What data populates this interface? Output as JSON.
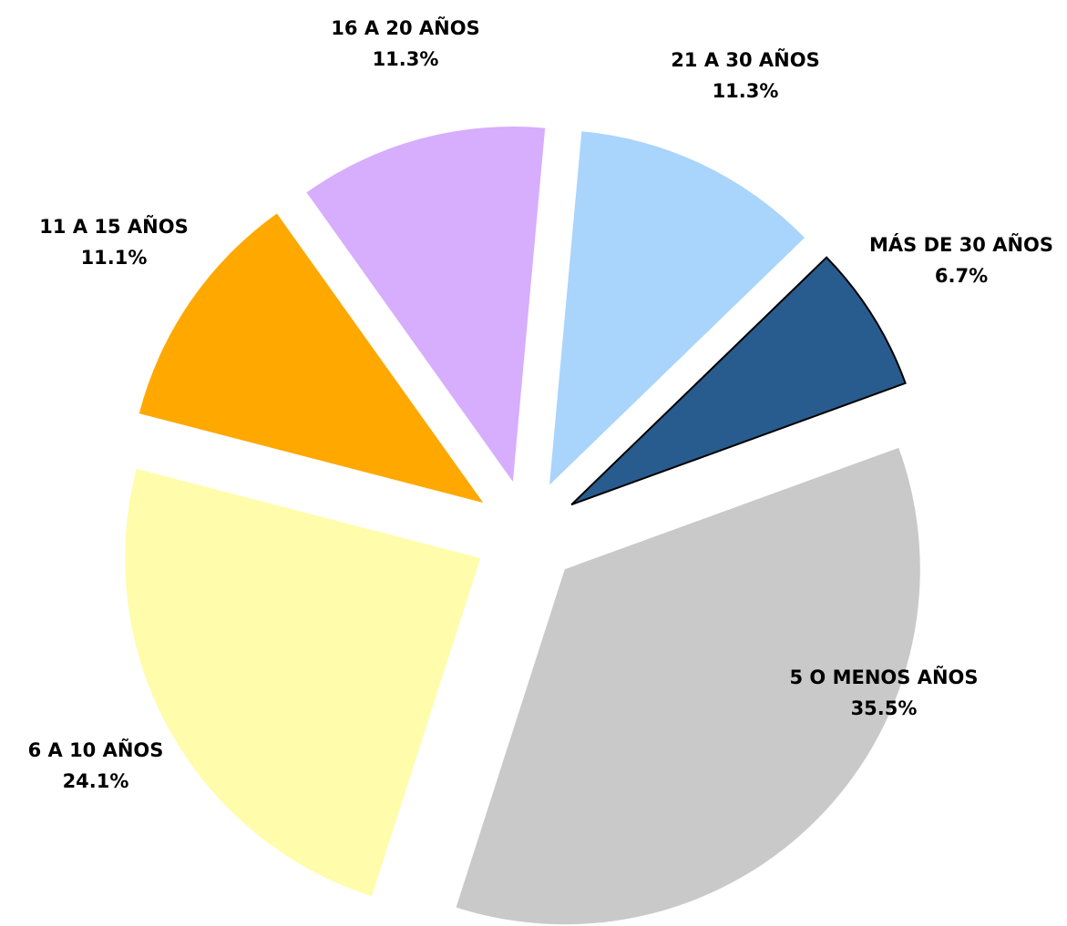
{
  "chart_data": {
    "type": "pie",
    "categories": [
      "5 O MENOS AÑOS",
      "6 A 10 AÑOS",
      "11 A 15 AÑOS",
      "16 A 20 AÑOS",
      "21 A 30 AÑOS",
      "MÁS DE 30 AÑOS"
    ],
    "values": [
      35.5,
      24.1,
      11.1,
      11.3,
      11.3,
      6.7
    ],
    "value_labels": [
      "35.5%",
      "24.1%",
      "11.1%",
      "11.3%",
      "11.3%",
      "6.7%"
    ],
    "colors": [
      "#c9c9c9",
      "#fffcab",
      "#ffa800",
      "#d7adfd",
      "#a9d4fb",
      "#285c8e"
    ]
  }
}
